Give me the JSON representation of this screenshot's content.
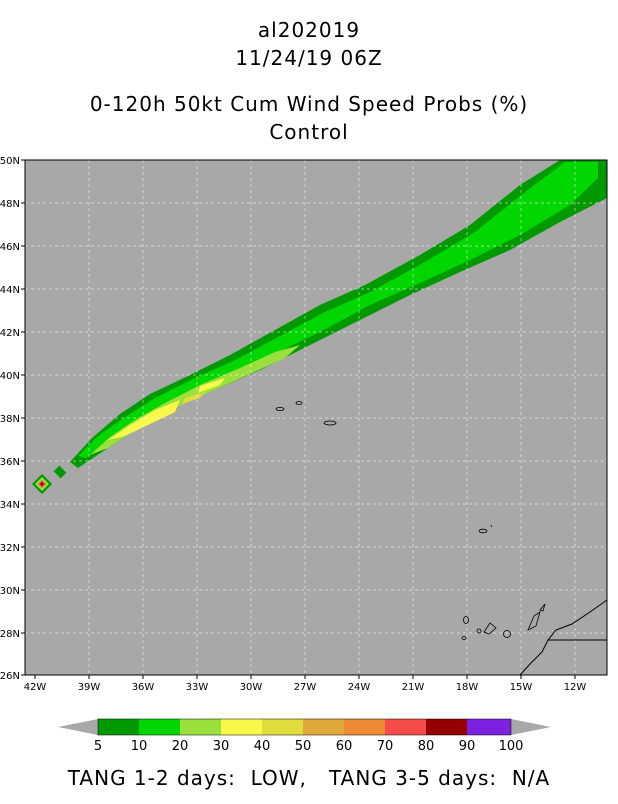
{
  "header": {
    "storm_id": "al202019",
    "datetime": "11/24/19 06Z",
    "product": "0-120h 50kt Cum Wind Speed Probs (%)",
    "model": "Control"
  },
  "map": {
    "lat_labels": [
      "50N",
      "48N",
      "46N",
      "44N",
      "42N",
      "40N",
      "38N",
      "36N",
      "34N",
      "32N",
      "30N",
      "28N",
      "26N"
    ],
    "lon_labels": [
      "42W",
      "39W",
      "36W",
      "33W",
      "30W",
      "27W",
      "24W",
      "21W",
      "18W",
      "15W",
      "12W"
    ],
    "background_color": "#a8a8a8",
    "grid": "dashed"
  },
  "colorbar": {
    "levels": [
      "5",
      "10",
      "20",
      "30",
      "40",
      "50",
      "60",
      "70",
      "80",
      "90",
      "100"
    ],
    "colors": [
      "#009a00",
      "#00d600",
      "#99e03c",
      "#f8f84a",
      "#e0dc3c",
      "#e0a83a",
      "#ee8a33",
      "#f54b4b",
      "#960000",
      "#7a22e0"
    ]
  },
  "footer": {
    "text": "TANG 1-2 days:  LOW,   TANG 3-5 days:  N/A"
  }
}
